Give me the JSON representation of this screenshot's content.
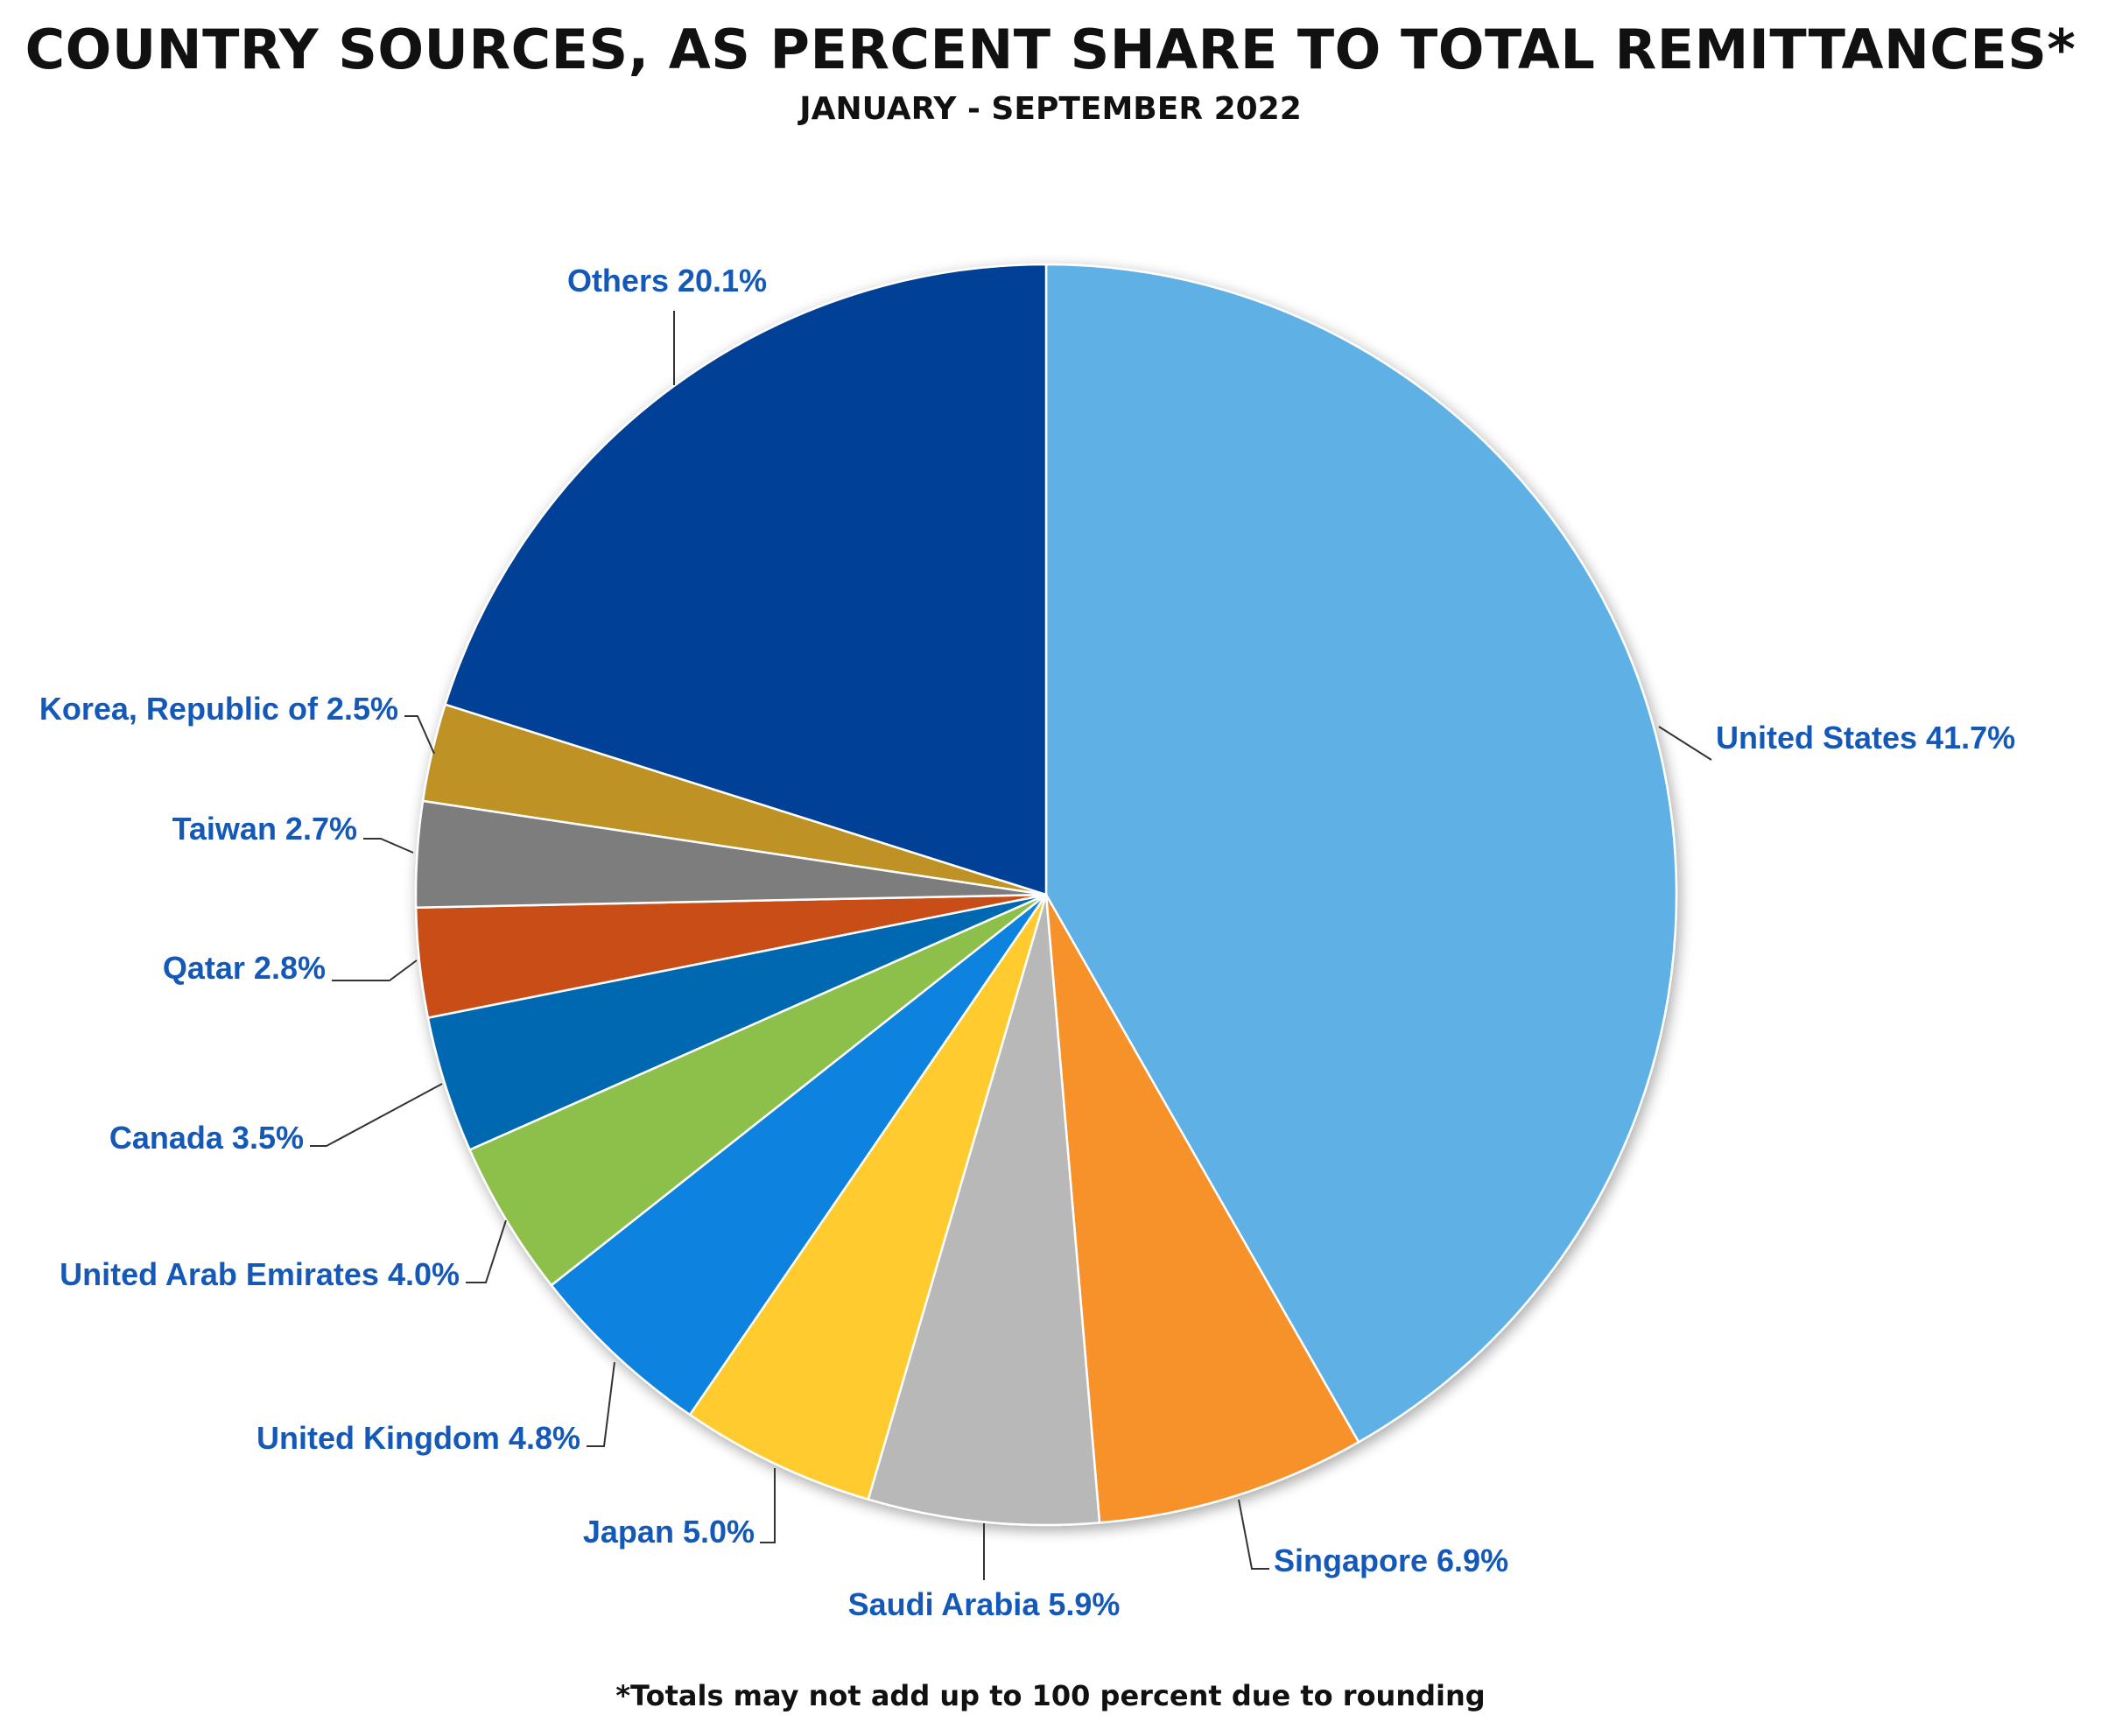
{
  "chart_data": {
    "type": "pie",
    "title": "COUNTRY SOURCES, AS PERCENT SHARE TO TOTAL REMITTANCES*",
    "subtitle": "JANUARY - SEPTEMBER 2022",
    "footnote": "*Totals may not add up to 100 percent due to rounding",
    "slices": [
      {
        "name": "United States",
        "value": 41.7,
        "label": "United States 41.7%",
        "color": "#5eb0e5"
      },
      {
        "name": "Singapore",
        "value": 6.9,
        "label": "Singapore 6.9%",
        "color": "#f7912a"
      },
      {
        "name": "Saudi Arabia",
        "value": 5.9,
        "label": "Saudi Arabia 5.9%",
        "color": "#b8b8b8"
      },
      {
        "name": "Japan",
        "value": 5.0,
        "label": "Japan 5.0%",
        "color": "#ffcb2f"
      },
      {
        "name": "United Kingdom",
        "value": 4.8,
        "label": "United Kingdom 4.8%",
        "color": "#0a82de"
      },
      {
        "name": "United Arab Emirates",
        "value": 4.0,
        "label": "United Arab Emirates 4.0%",
        "color": "#8dc04c"
      },
      {
        "name": "Canada",
        "value": 3.5,
        "label": "Canada 3.5%",
        "color": "#0567b0"
      },
      {
        "name": "Qatar",
        "value": 2.8,
        "label": "Qatar 2.8%",
        "color": "#c94e16"
      },
      {
        "name": "Taiwan",
        "value": 2.7,
        "label": "Taiwan 2.7%",
        "color": "#7d7d7d"
      },
      {
        "name": "Korea, Republic of",
        "value": 2.5,
        "label": "Korea, Republic of 2.5%",
        "color": "#bf9225"
      },
      {
        "name": "Others",
        "value": 20.1,
        "label": "Others 20.1%",
        "color": "#024196"
      }
    ],
    "label_color": "#1559b8"
  }
}
